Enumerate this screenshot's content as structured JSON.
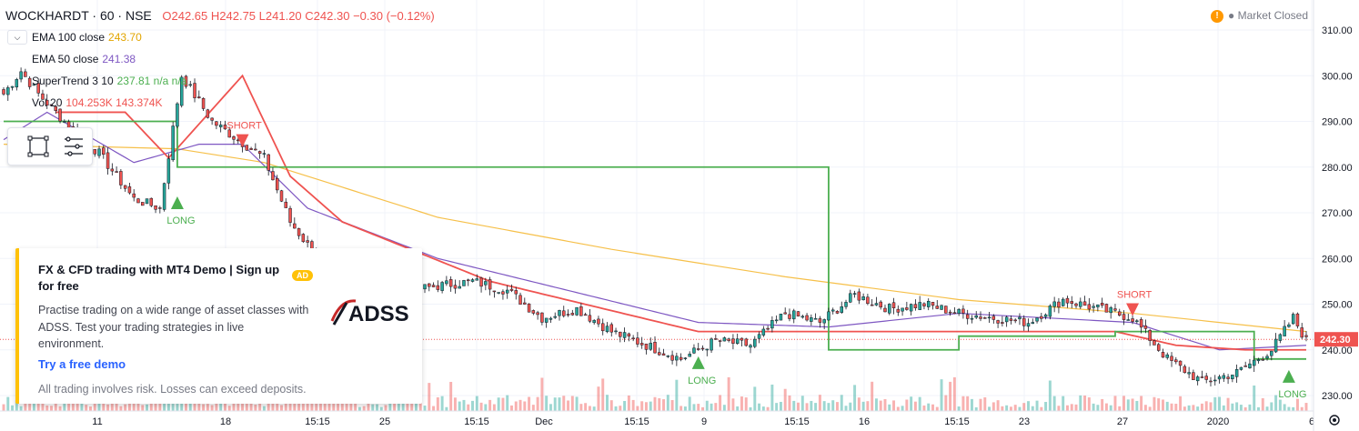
{
  "header": {
    "symbol": "WOCKHARDT · 60 · NSE",
    "open": "O242.65",
    "high": "H242.75",
    "low": "L241.20",
    "close": "C242.30",
    "change": "−0.30 (−0.12%)"
  },
  "market_status": {
    "icon": "warning-icon",
    "label": "Market Closed"
  },
  "indicators": [
    {
      "label": "EMA 100 close",
      "value": "243.70",
      "color": "#e2a500"
    },
    {
      "label": "EMA 50 close",
      "value": "241.38",
      "color": "#7e57c2"
    },
    {
      "label": "SuperTrend 3 10",
      "value": "237.81 n/a n/a",
      "color": "#4caf50"
    },
    {
      "label": "Vol 20",
      "value": "104.253K 143.374K",
      "color": "#ff9800"
    }
  ],
  "ad": {
    "badge": "AD",
    "title": "FX & CFD trading with MT4 Demo | Sign up for free",
    "description": "Practise trading on a wide range of asset classes with ADSS. Test your trading strategies in live environment.",
    "link": "Try a free demo",
    "disclaimer": "All trading involves risk. Losses can exceed deposits.",
    "logo_text": "ADSS"
  },
  "chart_data": {
    "type": "candlestick",
    "symbol": "WOCKHARDT",
    "interval": "60",
    "exchange": "NSE",
    "y_axis": {
      "ticks": [
        230,
        240,
        250,
        260,
        270,
        280,
        290,
        300,
        310
      ],
      "ylim": [
        226,
        314
      ]
    },
    "x_axis": {
      "ticks": [
        "11",
        "18",
        "15:15",
        "25",
        "15:15",
        "Dec",
        "15:15",
        "9",
        "15:15",
        "16",
        "15:15",
        "23",
        "27",
        "2020",
        "6"
      ]
    },
    "last_price": "242.30",
    "anchors": [
      [
        0,
        296
      ],
      [
        4,
        301
      ],
      [
        8,
        296
      ],
      [
        14,
        290
      ],
      [
        22,
        283
      ],
      [
        30,
        273
      ],
      [
        36,
        271
      ],
      [
        41,
        300
      ],
      [
        48,
        290
      ],
      [
        54,
        286
      ],
      [
        60,
        282
      ],
      [
        66,
        268
      ],
      [
        74,
        258
      ],
      [
        80,
        257
      ],
      [
        86,
        255
      ],
      [
        94,
        253
      ],
      [
        100,
        254
      ],
      [
        108,
        255
      ],
      [
        116,
        253
      ],
      [
        124,
        247
      ],
      [
        132,
        249
      ],
      [
        140,
        244
      ],
      [
        148,
        241
      ],
      [
        156,
        238
      ],
      [
        164,
        242
      ],
      [
        172,
        241
      ],
      [
        180,
        248
      ],
      [
        188,
        246
      ],
      [
        196,
        252
      ],
      [
        204,
        249
      ],
      [
        212,
        250
      ],
      [
        220,
        248
      ],
      [
        228,
        247
      ],
      [
        236,
        246
      ],
      [
        244,
        251
      ],
      [
        252,
        249
      ],
      [
        260,
        247
      ],
      [
        268,
        238
      ],
      [
        276,
        233
      ],
      [
        284,
        235
      ],
      [
        292,
        240
      ],
      [
        297,
        247
      ],
      [
        300,
        242
      ]
    ],
    "ema100": [
      [
        0,
        285
      ],
      [
        40,
        284
      ],
      [
        60,
        281
      ],
      [
        100,
        269
      ],
      [
        140,
        262
      ],
      [
        180,
        256
      ],
      [
        220,
        251
      ],
      [
        260,
        248
      ],
      [
        300,
        244
      ]
    ],
    "ema50": [
      [
        0,
        286
      ],
      [
        10,
        292
      ],
      [
        30,
        281
      ],
      [
        45,
        285
      ],
      [
        55,
        285
      ],
      [
        70,
        271
      ],
      [
        100,
        260
      ],
      [
        130,
        253
      ],
      [
        160,
        246
      ],
      [
        190,
        245
      ],
      [
        220,
        248
      ],
      [
        260,
        246
      ],
      [
        280,
        240
      ],
      [
        300,
        241
      ]
    ],
    "supertrend_short": [
      [
        12,
        292
      ],
      [
        28,
        292
      ],
      [
        38,
        282
      ],
      [
        55,
        300
      ],
      [
        66,
        278
      ],
      [
        78,
        268
      ],
      [
        112,
        255
      ],
      [
        160,
        244
      ],
      [
        220,
        244
      ],
      [
        256,
        244
      ],
      [
        270,
        241
      ],
      [
        286,
        240
      ],
      [
        300,
        240
      ]
    ],
    "supertrend_long": [
      [
        0,
        290
      ],
      [
        12,
        290
      ],
      [
        40,
        280
      ],
      [
        66,
        280
      ],
      [
        190,
        240
      ],
      [
        220,
        243
      ],
      [
        256,
        244
      ],
      [
        288,
        238
      ],
      [
        300,
        238
      ]
    ],
    "signals": [
      {
        "type": "long",
        "label": "LONG",
        "bar": 40,
        "price": 272
      },
      {
        "type": "short",
        "label": "SHORT",
        "bar": 55,
        "price": 286
      },
      {
        "type": "long",
        "label": "LONG",
        "bar": 160,
        "price": 237
      },
      {
        "type": "short",
        "label": "SHORT",
        "bar": 260,
        "price": 249
      },
      {
        "type": "long",
        "label": "LONG",
        "bar": 296,
        "price": 234
      }
    ],
    "colors": {
      "up": "#26a69a",
      "down": "#ef5350",
      "ema100": "#f6c04a",
      "ema50": "#7e57c2",
      "st_short": "#ef5350",
      "st_long": "#4caf50"
    }
  }
}
